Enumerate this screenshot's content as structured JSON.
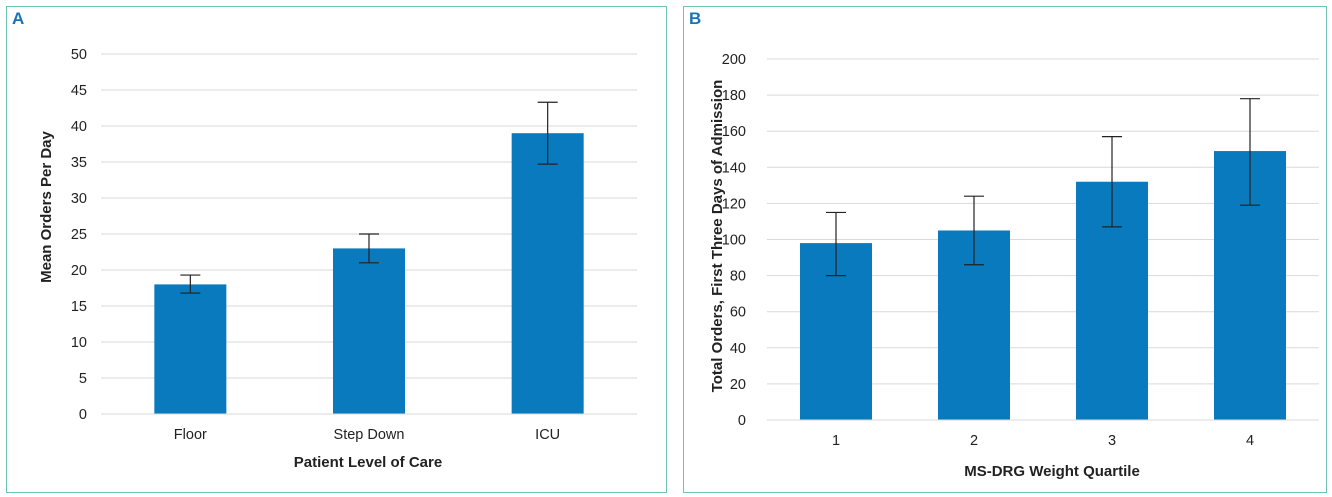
{
  "colors": {
    "bar": "#0a7abf",
    "grid": "#d9d9d9",
    "accent_border": "#6fc3b6",
    "panel_label": "#1a73b8"
  },
  "chart_data": [
    {
      "panel_label": "A",
      "type": "bar",
      "categories": [
        "Floor",
        "Step Down",
        "ICU"
      ],
      "values": [
        18,
        23,
        39
      ],
      "error_low": [
        16.8,
        21,
        34.7
      ],
      "error_high": [
        19.3,
        25,
        43.3
      ],
      "yticks": [
        "0",
        "5",
        "10",
        "15",
        "20",
        "25",
        "30",
        "35",
        "40",
        "45",
        "50"
      ],
      "ylim": [
        0,
        50
      ],
      "xlabel": "Patient Level of Care",
      "ylabel": "Mean Orders Per Day",
      "title": "",
      "grid": true
    },
    {
      "panel_label": "B",
      "type": "bar",
      "categories": [
        "1",
        "2",
        "3",
        "4"
      ],
      "values": [
        98,
        105,
        132,
        149
      ],
      "error_low": [
        80,
        86,
        107,
        119
      ],
      "error_high": [
        115,
        124,
        157,
        178
      ],
      "yticks": [
        "0",
        "20",
        "40",
        "60",
        "80",
        "100",
        "120",
        "140",
        "160",
        "180",
        "200"
      ],
      "ylim": [
        0,
        200
      ],
      "xlabel": "MS-DRG Weight Quartile",
      "ylabel": "Total Orders, First Three Days of Admission",
      "title": "",
      "grid": true
    }
  ]
}
